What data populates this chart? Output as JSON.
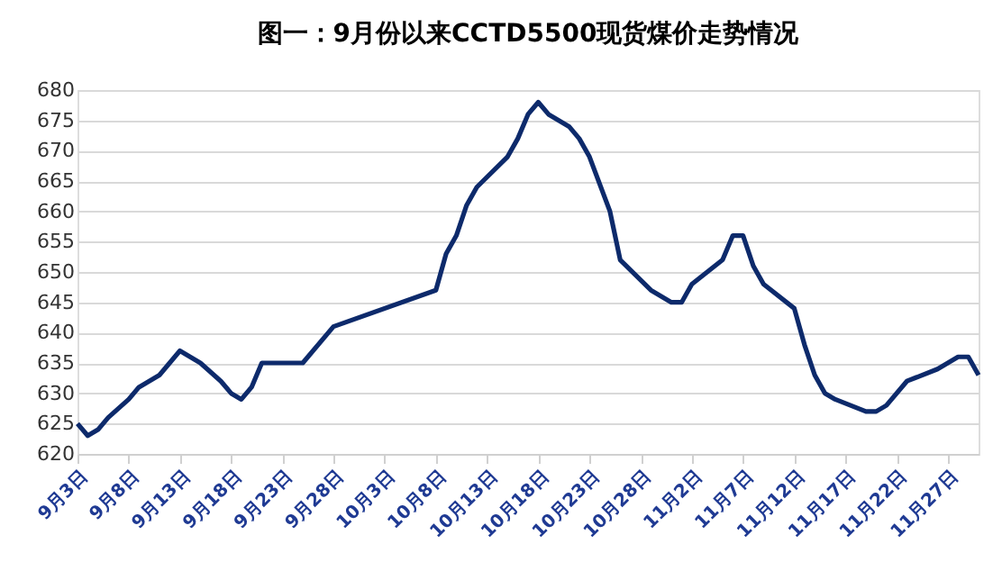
{
  "chart_data": {
    "type": "line",
    "title": "图一：9月份以来CCTD5500现货煤价走势情况",
    "x": [
      "--09-03",
      "--09-04",
      "--09-05",
      "--09-06",
      "--09-08",
      "--09-09",
      "--09-11",
      "--09-12",
      "--09-13",
      "--09-15",
      "--09-17",
      "--09-18",
      "--09-19",
      "--09-20",
      "--09-21",
      "--09-25",
      "--09-28",
      "--10-08",
      "--10-09",
      "--10-10",
      "--10-11",
      "--10-12",
      "--10-15",
      "--10-16",
      "--10-17",
      "--10-18",
      "--10-19",
      "--10-21",
      "--10-22",
      "--10-23",
      "--10-25",
      "--10-26",
      "--10-29",
      "--10-31",
      "--11-01",
      "--11-02",
      "--11-05",
      "--11-06",
      "--11-07",
      "--11-08",
      "--11-09",
      "--11-12",
      "--11-13",
      "--11-14",
      "--11-15",
      "--11-16",
      "--11-19",
      "--11-20",
      "--11-21",
      "--11-23",
      "--11-26",
      "--11-28",
      "--11-29",
      "--11-30"
    ],
    "series": [
      {
        "color": "#0d2a6b",
        "values": [
          625,
          623,
          624,
          626,
          629,
          631,
          633,
          635,
          637,
          635,
          632,
          630,
          629,
          631,
          635,
          635,
          641,
          647,
          653,
          656,
          661,
          664,
          669,
          672,
          676,
          678,
          676,
          674,
          672,
          669,
          660,
          652,
          647,
          645,
          645,
          648,
          652,
          656,
          656,
          651,
          648,
          644,
          638,
          633,
          630,
          629,
          627,
          627,
          628,
          632,
          634,
          636,
          636,
          633
        ]
      }
    ],
    "xlim": [
      "--09-03",
      "--11-30"
    ],
    "xticks": [
      {
        "value": "--09-03",
        "label": "9月3日"
      },
      {
        "value": "--09-08",
        "label": "9月8日"
      },
      {
        "value": "--09-13",
        "label": "9月13日"
      },
      {
        "value": "--09-18",
        "label": "9月18日"
      },
      {
        "value": "--09-23",
        "label": "9月23日"
      },
      {
        "value": "--09-28",
        "label": "9月28日"
      },
      {
        "value": "--10-03",
        "label": "10月3日"
      },
      {
        "value": "--10-08",
        "label": "10月8日"
      },
      {
        "value": "--10-13",
        "label": "10月13日"
      },
      {
        "value": "--10-18",
        "label": "10月18日"
      },
      {
        "value": "--10-23",
        "label": "10月23日"
      },
      {
        "value": "--10-28",
        "label": "10月28日"
      },
      {
        "value": "--11-02",
        "label": "11月2日"
      },
      {
        "value": "--11-07",
        "label": "11月7日"
      },
      {
        "value": "--11-12",
        "label": "11月12日"
      },
      {
        "value": "--11-17",
        "label": "11月17日"
      },
      {
        "value": "--11-22",
        "label": "11月22日"
      },
      {
        "value": "--11-27",
        "label": "11月27日"
      }
    ],
    "ylim": [
      620,
      680
    ],
    "yticks": [
      620,
      625,
      630,
      635,
      640,
      645,
      650,
      655,
      660,
      665,
      670,
      675,
      680
    ],
    "grid": "y",
    "marker": "none",
    "line_style": "solid"
  }
}
